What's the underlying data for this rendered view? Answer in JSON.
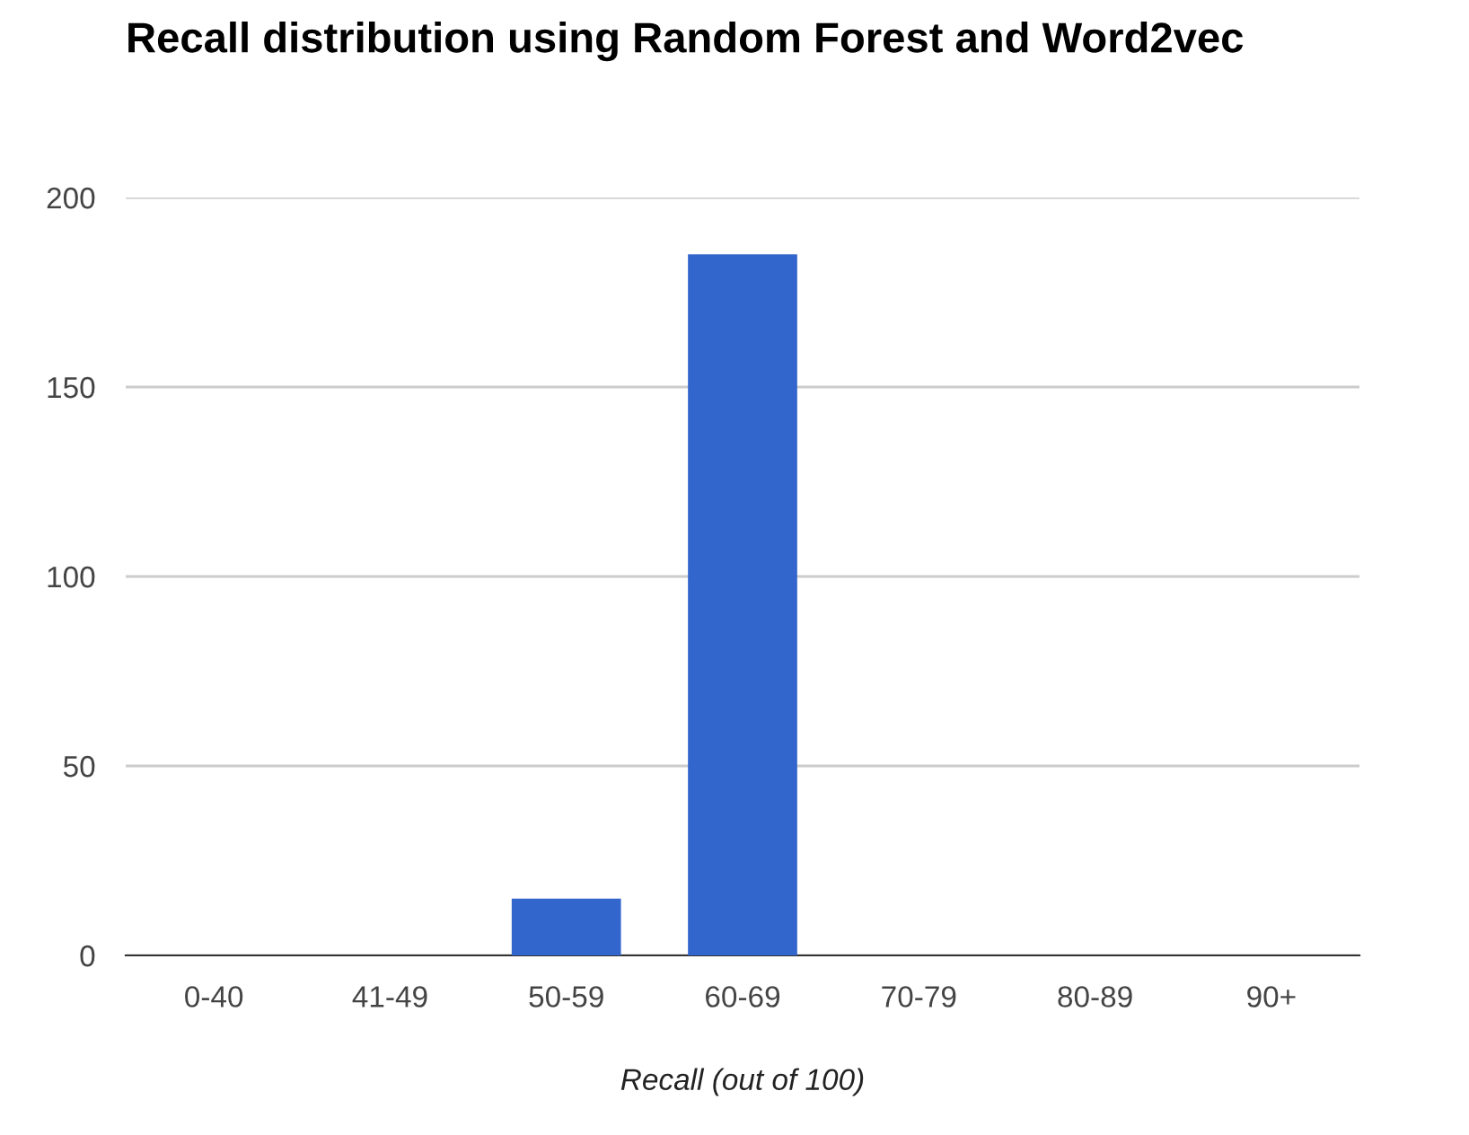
{
  "chart_data": {
    "type": "bar",
    "title": "Recall distribution using Random Forest and Word2vec",
    "xlabel": "Recall (out of 100)",
    "categories": [
      "0-40",
      "41-49",
      "50-59",
      "60-69",
      "70-79",
      "80-89",
      "90+"
    ],
    "values": [
      0,
      0,
      15,
      185,
      0,
      0,
      0
    ],
    "color": "#3366cc",
    "ylim": [
      0,
      200
    ],
    "yticks": [
      0,
      50,
      100,
      150,
      200
    ],
    "grid": "y"
  }
}
